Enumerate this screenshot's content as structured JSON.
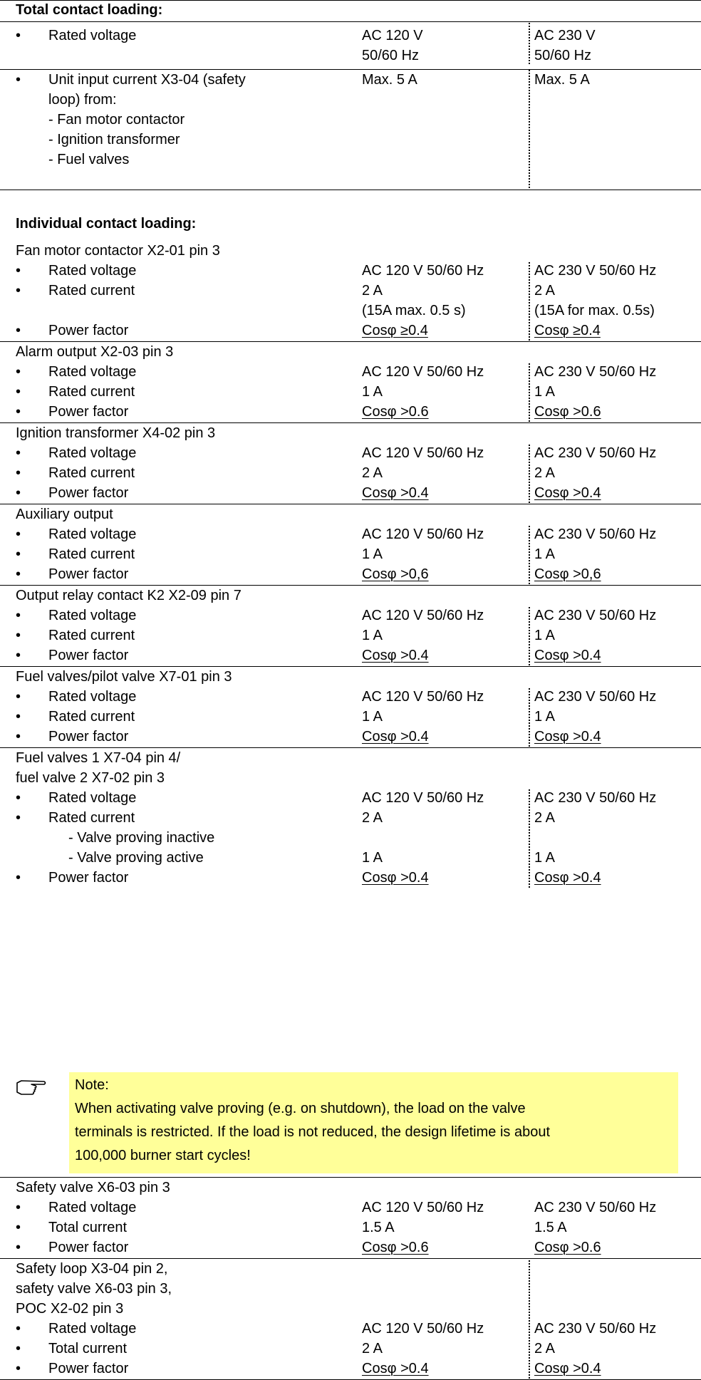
{
  "total_heading": "Total contact loading:",
  "bullet": "•",
  "total": [
    {
      "label": "Rated voltage",
      "v120": "AC 120 V",
      "v230": "AC 230 V"
    },
    {
      "label": "",
      "v120": "50/60 Hz",
      "v230": "50/60 Hz"
    },
    {
      "label": "Unit input current X3-04 (safety",
      "v120": "Max. 5 A",
      "v230": "Max. 5 A"
    },
    {
      "label": "loop) from:"
    },
    {
      "label": "- Fan motor contactor"
    },
    {
      "label": "- Ignition transformer"
    },
    {
      "label": "- Fuel valves"
    }
  ],
  "individual_heading": "Individual contact loading:",
  "groups": [
    {
      "title": [
        "Fan motor contactor X2-01 pin 3"
      ],
      "rows": [
        {
          "label": "Rated voltage",
          "v120": "AC 120 V 50/60 Hz",
          "v230": "AC 230 V 50/60 Hz"
        },
        {
          "label": "Rated current",
          "v120": "2 A",
          "v230": "2 A"
        },
        {
          "label": "",
          "v120": "(15A max. 0.5 s)",
          "v230": "(15A for max. 0.5s)"
        },
        {
          "label": "Power factor",
          "v120": "Cosφ ≥0.4",
          "v230": "Cosφ ≥0.4"
        }
      ]
    },
    {
      "title": [
        "Alarm output X2-03 pin 3"
      ],
      "rows": [
        {
          "label": "Rated voltage",
          "v120": "AC 120 V 50/60 Hz",
          "v230": "AC 230 V 50/60 Hz"
        },
        {
          "label": "Rated current",
          "v120": "1 A",
          "v230": "1 A"
        },
        {
          "label": "Power factor",
          "v120": "Cosφ >0.6",
          "v230": "Cosφ >0.6"
        }
      ]
    },
    {
      "title": [
        "Ignition transformer X4-02 pin 3"
      ],
      "rows": [
        {
          "label": "Rated voltage",
          "v120": "AC 120 V 50/60 Hz",
          "v230": "AC 230 V 50/60 Hz"
        },
        {
          "label": "Rated current",
          "v120": "2 A",
          "v230": "2 A"
        },
        {
          "label": "Power factor",
          "v120": "Cosφ >0.4",
          "v230": "Cosφ >0.4"
        }
      ]
    },
    {
      "title": [
        "Auxiliary output"
      ],
      "rows": [
        {
          "label": "Rated voltage",
          "v120": "AC 120 V 50/60 Hz",
          "v230": "AC 230 V 50/60 Hz"
        },
        {
          "label": "Rated current",
          "v120": "1 A",
          "v230": "1 A"
        },
        {
          "label": "Power factor",
          "v120": "Cosφ >0,6",
          "v230": "Cosφ >0,6"
        }
      ]
    },
    {
      "title": [
        "Output relay contact K2 X2-09 pin 7"
      ],
      "rows": [
        {
          "label": "Rated voltage",
          "v120": "AC 120 V 50/60 Hz",
          "v230": "AC 230 V 50/60 Hz"
        },
        {
          "label": "Rated current",
          "v120": "1 A",
          "v230": "1 A"
        },
        {
          "label": "Power factor",
          "v120": "Cosφ >0.4",
          "v230": "Cosφ >0.4"
        }
      ]
    },
    {
      "title": [
        "Fuel valves/pilot valve X7-01 pin 3"
      ],
      "rows": [
        {
          "label": "Rated voltage",
          "v120": "AC 120 V 50/60 Hz",
          "v230": "AC 230 V 50/60 Hz"
        },
        {
          "label": "Rated current",
          "v120": "1 A",
          "v230": "1 A"
        },
        {
          "label": "Power factor",
          "v120": "Cosφ >0.4",
          "v230": "Cosφ >0.4"
        }
      ]
    },
    {
      "title": [
        "Fuel valves 1 X7-04 pin 4/",
        "fuel valve 2 X7-02 pin 3"
      ],
      "rows": [
        {
          "label": "Rated voltage",
          "v120": "AC 120 V 50/60 Hz",
          "v230": "AC 230 V 50/60 Hz"
        },
        {
          "label": "Rated current",
          "v120": "2 A",
          "v230": "2 A"
        },
        {
          "label": "- Valve proving inactive",
          "sub": true
        },
        {
          "label": "- Valve proving active",
          "v120": "1 A",
          "v230": "1 A",
          "sub": true
        },
        {
          "label": "Power factor",
          "v120": "Cosφ >0.4",
          "v230": "Cosφ >0.4"
        }
      ]
    },
    {
      "title": [
        "Safety valve X6-03 pin 3"
      ],
      "rows": [
        {
          "label": "Rated voltage",
          "v120": "AC 120 V 50/60 Hz",
          "v230": "AC 230 V 50/60 Hz"
        },
        {
          "label": "Total current",
          "v120": "1.5 A",
          "v230": "1.5 A"
        },
        {
          "label": "Power factor",
          "v120": "Cosφ >0.6",
          "v230": "Cosφ >0.6"
        }
      ]
    },
    {
      "title": [
        "Safety loop X3-04 pin 2,",
        "safety valve X6-03 pin 3,",
        "POC X2-02 pin 3"
      ],
      "rows": [
        {
          "label": "Rated voltage",
          "v120": "AC 120 V 50/60 Hz",
          "v230": "AC 230 V 50/60 Hz"
        },
        {
          "label": "Total current",
          "v120": "2 A",
          "v230": "2 A"
        },
        {
          "label": "Power factor",
          "v120": "Cosφ >0.4",
          "v230": "Cosφ >0.4"
        }
      ]
    }
  ],
  "note": {
    "icon": "pointing-hand-icon",
    "title": "Note:",
    "lines": [
      "When activating valve proving (e.g. on shutdown), the load on the valve",
      "terminals is restricted. If the load is not reduced, the design lifetime is about",
      "100,000 burner start cycles!"
    ],
    "color": "#ffff99"
  }
}
